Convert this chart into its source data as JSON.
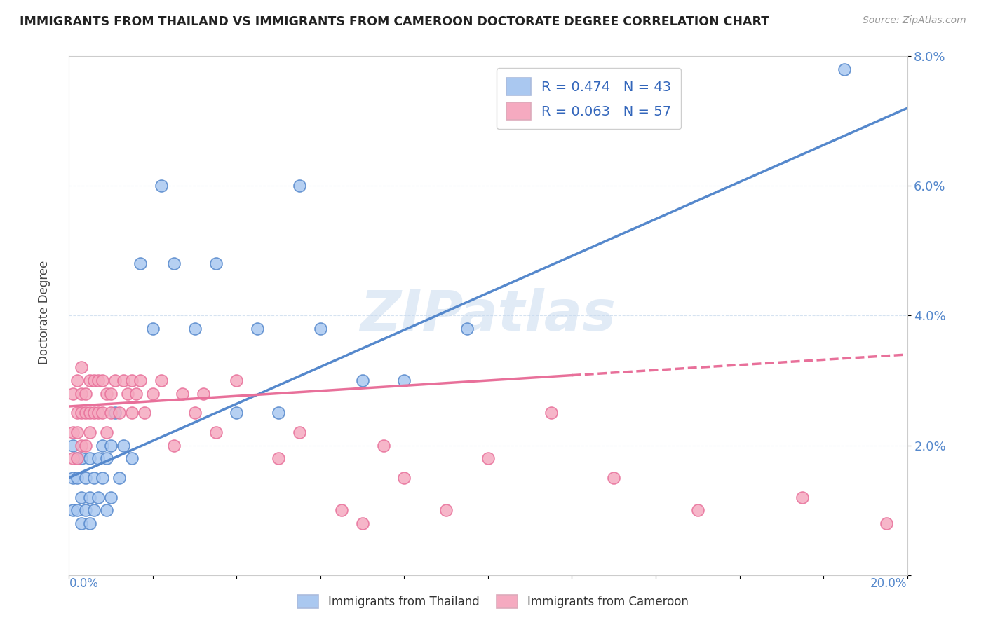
{
  "title": "IMMIGRANTS FROM THAILAND VS IMMIGRANTS FROM CAMEROON DOCTORATE DEGREE CORRELATION CHART",
  "source_text": "Source: ZipAtlas.com",
  "ylabel": "Doctorate Degree",
  "xlim": [
    0.0,
    0.2
  ],
  "ylim": [
    0.0,
    0.08
  ],
  "yticks": [
    0.0,
    0.02,
    0.04,
    0.06,
    0.08
  ],
  "ytick_labels": [
    "",
    "2.0%",
    "4.0%",
    "6.0%",
    "8.0%"
  ],
  "color_thailand": "#aac8f0",
  "color_cameroon": "#f5aac0",
  "color_line_thailand": "#5588cc",
  "color_line_cameroon": "#e8709a",
  "watermark": "ZIPatlas",
  "thailand_R": 0.474,
  "cameroon_R": 0.063,
  "thailand_N": 43,
  "cameroon_N": 57,
  "thai_line_x0": 0.0,
  "thai_line_y0": 0.015,
  "thai_line_x1": 0.2,
  "thai_line_y1": 0.072,
  "cam_line_x0": 0.0,
  "cam_line_y0": 0.026,
  "cam_line_x1": 0.2,
  "cam_line_y1": 0.034,
  "cam_line_solid_end": 0.12,
  "thailand_x": [
    0.001,
    0.001,
    0.001,
    0.002,
    0.002,
    0.002,
    0.003,
    0.003,
    0.003,
    0.004,
    0.004,
    0.005,
    0.005,
    0.005,
    0.006,
    0.006,
    0.007,
    0.007,
    0.008,
    0.008,
    0.009,
    0.009,
    0.01,
    0.01,
    0.011,
    0.012,
    0.013,
    0.015,
    0.017,
    0.02,
    0.022,
    0.025,
    0.03,
    0.035,
    0.04,
    0.045,
    0.05,
    0.055,
    0.06,
    0.07,
    0.08,
    0.095,
    0.185
  ],
  "thailand_y": [
    0.01,
    0.015,
    0.02,
    0.01,
    0.015,
    0.018,
    0.008,
    0.012,
    0.018,
    0.01,
    0.015,
    0.008,
    0.012,
    0.018,
    0.01,
    0.015,
    0.012,
    0.018,
    0.015,
    0.02,
    0.01,
    0.018,
    0.012,
    0.02,
    0.025,
    0.015,
    0.02,
    0.018,
    0.048,
    0.038,
    0.06,
    0.048,
    0.038,
    0.048,
    0.025,
    0.038,
    0.025,
    0.06,
    0.038,
    0.03,
    0.03,
    0.038,
    0.078
  ],
  "cameroon_x": [
    0.001,
    0.001,
    0.001,
    0.002,
    0.002,
    0.002,
    0.002,
    0.003,
    0.003,
    0.003,
    0.003,
    0.004,
    0.004,
    0.004,
    0.005,
    0.005,
    0.005,
    0.006,
    0.006,
    0.007,
    0.007,
    0.008,
    0.008,
    0.009,
    0.009,
    0.01,
    0.01,
    0.011,
    0.012,
    0.013,
    0.014,
    0.015,
    0.015,
    0.016,
    0.017,
    0.018,
    0.02,
    0.022,
    0.025,
    0.027,
    0.03,
    0.032,
    0.035,
    0.04,
    0.05,
    0.055,
    0.065,
    0.07,
    0.075,
    0.08,
    0.09,
    0.1,
    0.115,
    0.13,
    0.15,
    0.175,
    0.195
  ],
  "cameroon_y": [
    0.018,
    0.022,
    0.028,
    0.018,
    0.022,
    0.025,
    0.03,
    0.02,
    0.025,
    0.028,
    0.032,
    0.02,
    0.025,
    0.028,
    0.022,
    0.025,
    0.03,
    0.025,
    0.03,
    0.025,
    0.03,
    0.025,
    0.03,
    0.022,
    0.028,
    0.025,
    0.028,
    0.03,
    0.025,
    0.03,
    0.028,
    0.025,
    0.03,
    0.028,
    0.03,
    0.025,
    0.028,
    0.03,
    0.02,
    0.028,
    0.025,
    0.028,
    0.022,
    0.03,
    0.018,
    0.022,
    0.01,
    0.008,
    0.02,
    0.015,
    0.01,
    0.018,
    0.025,
    0.015,
    0.01,
    0.012,
    0.008
  ]
}
